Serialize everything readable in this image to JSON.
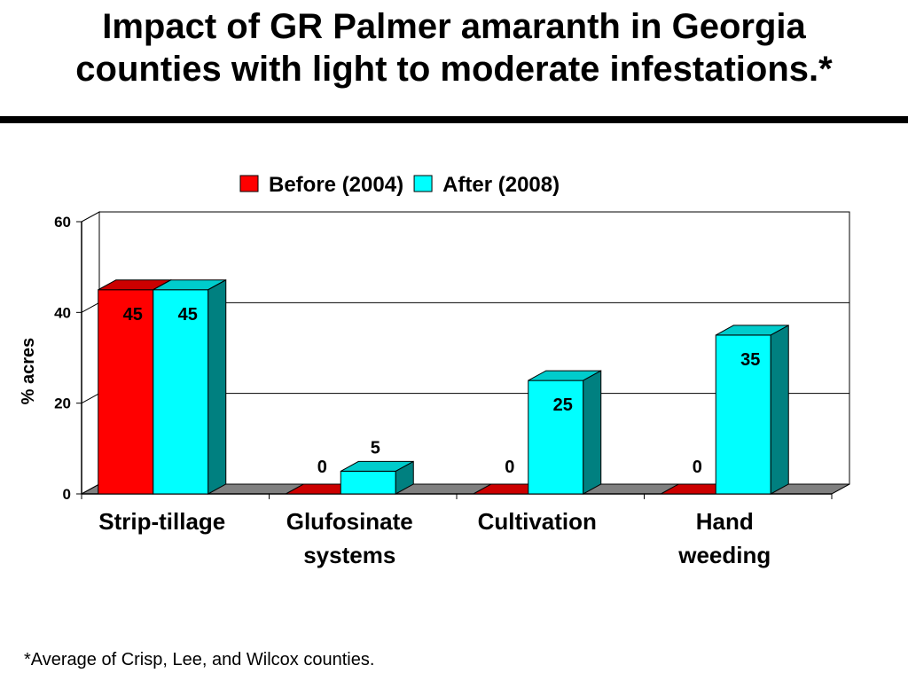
{
  "slide": {
    "title_line1": "Impact of GR Palmer amaranth in Georgia",
    "title_line2": "counties with light to moderate infestations.*",
    "footnote": "*Average of Crisp, Lee, and Wilcox counties."
  },
  "chart_data": {
    "type": "bar",
    "categories": [
      "Strip-tillage",
      "Glufosinate systems",
      "Cultivation",
      "Hand weeding"
    ],
    "category_lines": [
      [
        "Strip-tillage"
      ],
      [
        "Glufosinate",
        "systems"
      ],
      [
        "Cultivation"
      ],
      [
        "Hand",
        "weeding"
      ]
    ],
    "series": [
      {
        "name": "Before (2004)",
        "values": [
          45,
          0,
          0,
          0
        ],
        "color": "#ff0000",
        "side_color": "#990000",
        "top_color": "#cc0000"
      },
      {
        "name": "After (2008)",
        "values": [
          45,
          5,
          25,
          35
        ],
        "color": "#00ffff",
        "side_color": "#008080",
        "top_color": "#00cccc"
      }
    ],
    "data_labels": [
      [
        "45",
        "0",
        "0",
        "0"
      ],
      [
        "45",
        "5",
        "25",
        "35"
      ]
    ],
    "ylabel": "% acres",
    "ylim": [
      0,
      60
    ],
    "yticks": [
      0,
      20,
      40,
      60
    ],
    "grid": true,
    "legend_position": "top",
    "three_d": true
  }
}
